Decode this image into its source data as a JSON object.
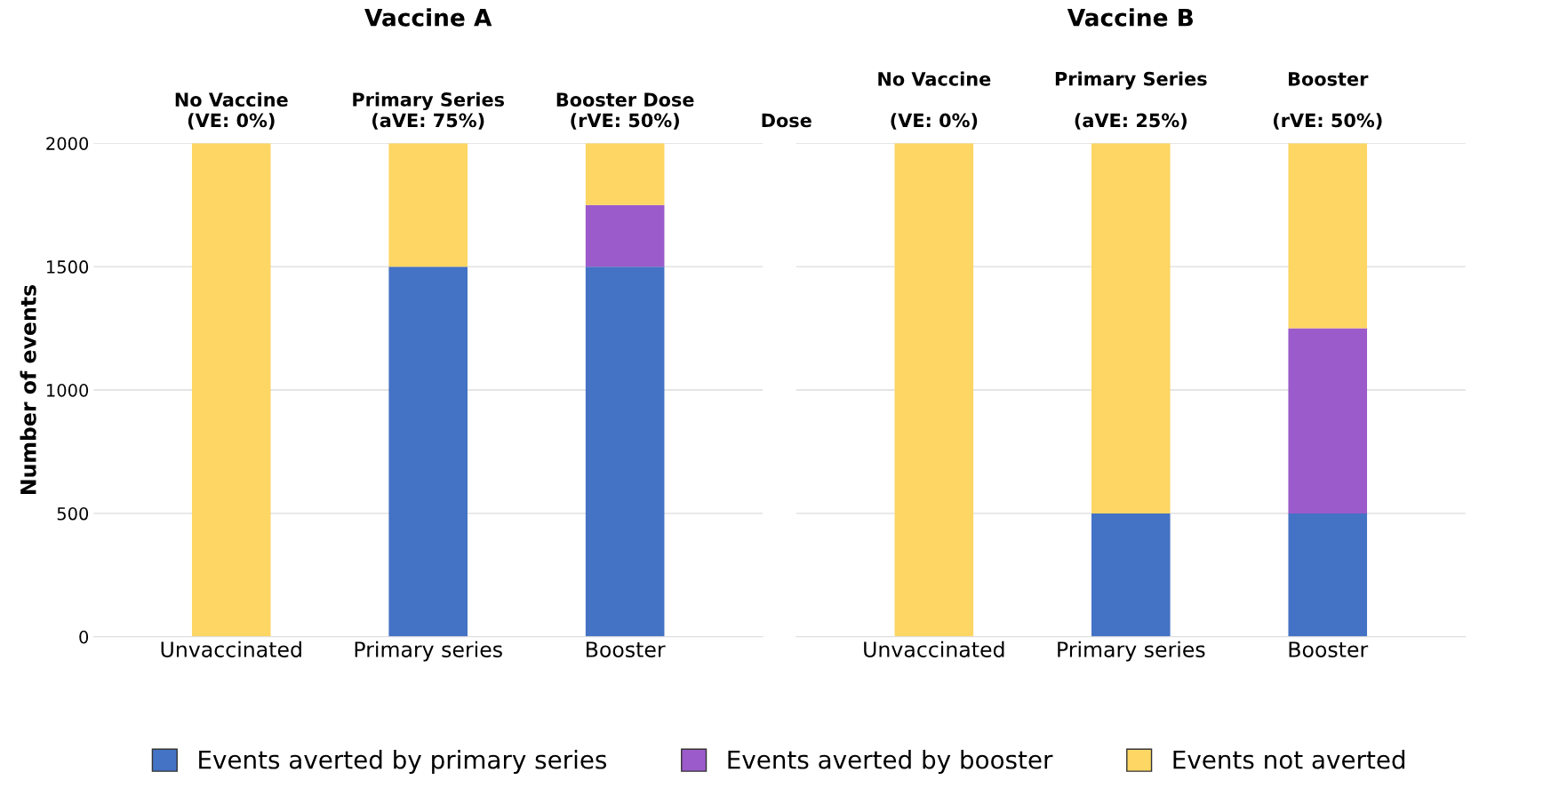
{
  "chart_data": [
    {
      "type": "bar",
      "title": "Vaccine A",
      "ylabel": "Number of events",
      "categories": [
        "Unvaccinated",
        "Primary series",
        "Booster"
      ],
      "stacked": true,
      "ylim": [
        0,
        2000
      ],
      "yticks": [
        0,
        500,
        1000,
        1500,
        2000
      ],
      "grid": "y",
      "legend": "bottom",
      "annotations": [
        "No Vaccine\n(VE: 0%)",
        "Primary Series\n(aVE: 75%)",
        "Booster Dose\n(rVE: 50%)"
      ],
      "series": [
        {
          "name": "Events averted by primary series",
          "color": "#4472c4",
          "values": [
            0,
            1500,
            1500
          ]
        },
        {
          "name": "Events averted by booster",
          "color": "#9b5bcb",
          "values": [
            0,
            0,
            250
          ]
        },
        {
          "name": "Events not averted",
          "color": "#fdd663",
          "values": [
            2000,
            500,
            250
          ]
        }
      ]
    },
    {
      "type": "bar",
      "title": "Vaccine B",
      "categories": [
        "Unvaccinated",
        "Primary series",
        "Booster"
      ],
      "stacked": true,
      "ylim": [
        0,
        2000
      ],
      "yticks": [
        0,
        500,
        1000,
        1500,
        2000
      ],
      "grid": "y",
      "tick_labels": "x",
      "annotations": [
        "Dose",
        "No Vaccine\n\n(VE: 0%)",
        "Primary Series\n\n(aVE: 25%)",
        "Booster\n\n(rVE: 50%)"
      ],
      "series": [
        {
          "color": "#4472c4",
          "values": [
            0,
            500,
            500
          ]
        },
        {
          "color": "#9b5bcb",
          "values": [
            0,
            0,
            750
          ]
        },
        {
          "color": "#fdd663",
          "values": [
            2000,
            1500,
            750
          ]
        }
      ]
    }
  ]
}
